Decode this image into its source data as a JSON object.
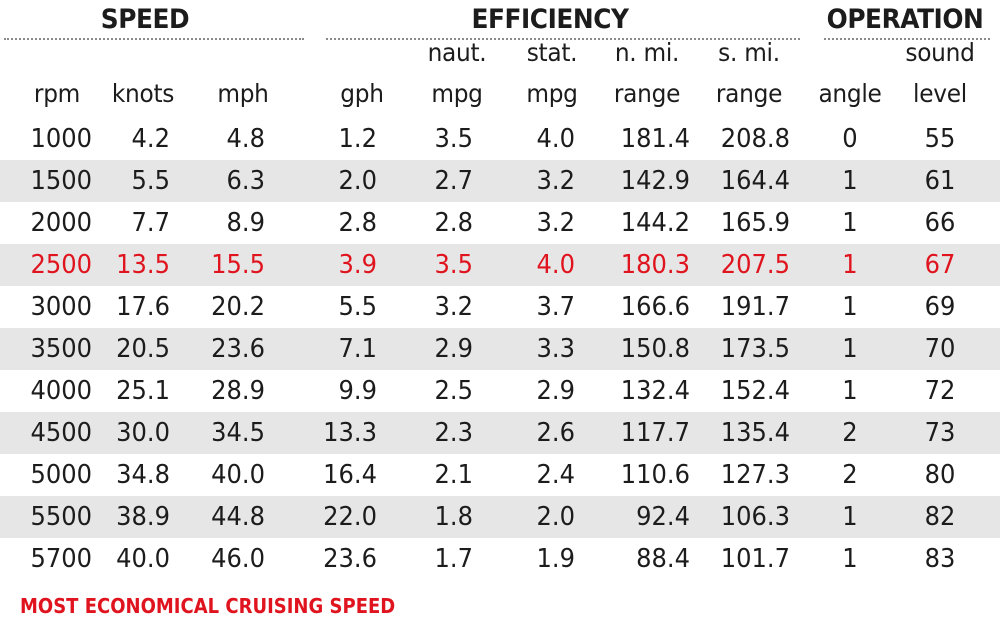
{
  "groups": {
    "speed": "SPEED",
    "efficiency": "EFFICIENCY",
    "operation": "OPERATION"
  },
  "columns": [
    {
      "key": "rpm",
      "top": "",
      "bottom": "rpm"
    },
    {
      "key": "knots",
      "top": "",
      "bottom": "knots"
    },
    {
      "key": "mph",
      "top": "",
      "bottom": "mph"
    },
    {
      "key": "gph",
      "top": "",
      "bottom": "gph"
    },
    {
      "key": "naut_mpg",
      "top": "naut.",
      "bottom": "mpg"
    },
    {
      "key": "stat_mpg",
      "top": "stat.",
      "bottom": "mpg"
    },
    {
      "key": "nmi_range",
      "top": "n. mi.",
      "bottom": "range"
    },
    {
      "key": "smi_range",
      "top": "s. mi.",
      "bottom": "range"
    },
    {
      "key": "angle",
      "top": "",
      "bottom": "angle"
    },
    {
      "key": "sound",
      "top": "sound",
      "bottom": "level"
    }
  ],
  "rows": [
    {
      "values": [
        "1000",
        "4.2",
        "4.8",
        "1.2",
        "3.5",
        "4.0",
        "181.4",
        "208.8",
        "0",
        "55"
      ],
      "shaded": false,
      "highlight": false
    },
    {
      "values": [
        "1500",
        "5.5",
        "6.3",
        "2.0",
        "2.7",
        "3.2",
        "142.9",
        "164.4",
        "1",
        "61"
      ],
      "shaded": true,
      "highlight": false
    },
    {
      "values": [
        "2000",
        "7.7",
        "8.9",
        "2.8",
        "2.8",
        "3.2",
        "144.2",
        "165.9",
        "1",
        "66"
      ],
      "shaded": false,
      "highlight": false
    },
    {
      "values": [
        "2500",
        "13.5",
        "15.5",
        "3.9",
        "3.5",
        "4.0",
        "180.3",
        "207.5",
        "1",
        "67"
      ],
      "shaded": true,
      "highlight": true
    },
    {
      "values": [
        "3000",
        "17.6",
        "20.2",
        "5.5",
        "3.2",
        "3.7",
        "166.6",
        "191.7",
        "1",
        "69"
      ],
      "shaded": false,
      "highlight": false
    },
    {
      "values": [
        "3500",
        "20.5",
        "23.6",
        "7.1",
        "2.9",
        "3.3",
        "150.8",
        "173.5",
        "1",
        "70"
      ],
      "shaded": true,
      "highlight": false
    },
    {
      "values": [
        "4000",
        "25.1",
        "28.9",
        "9.9",
        "2.5",
        "2.9",
        "132.4",
        "152.4",
        "1",
        "72"
      ],
      "shaded": false,
      "highlight": false
    },
    {
      "values": [
        "4500",
        "30.0",
        "34.5",
        "13.3",
        "2.3",
        "2.6",
        "117.7",
        "135.4",
        "2",
        "73"
      ],
      "shaded": true,
      "highlight": false
    },
    {
      "values": [
        "5000",
        "34.8",
        "40.0",
        "16.4",
        "2.1",
        "2.4",
        "110.6",
        "127.3",
        "2",
        "80"
      ],
      "shaded": false,
      "highlight": false
    },
    {
      "values": [
        "5500",
        "38.9",
        "44.8",
        "22.0",
        "1.8",
        "2.0",
        "92.4",
        "106.3",
        "1",
        "82"
      ],
      "shaded": true,
      "highlight": false
    },
    {
      "values": [
        "5700",
        "40.0",
        "46.0",
        "23.6",
        "1.7",
        "1.9",
        "88.4",
        "101.7",
        "1",
        "83"
      ],
      "shaded": false,
      "highlight": false
    }
  ],
  "footnote": "MOST ECONOMICAL CRUISING SPEED",
  "colors": {
    "highlight": "#e0141e",
    "shade": "#e6e6e6",
    "text": "#1c1c1c"
  }
}
